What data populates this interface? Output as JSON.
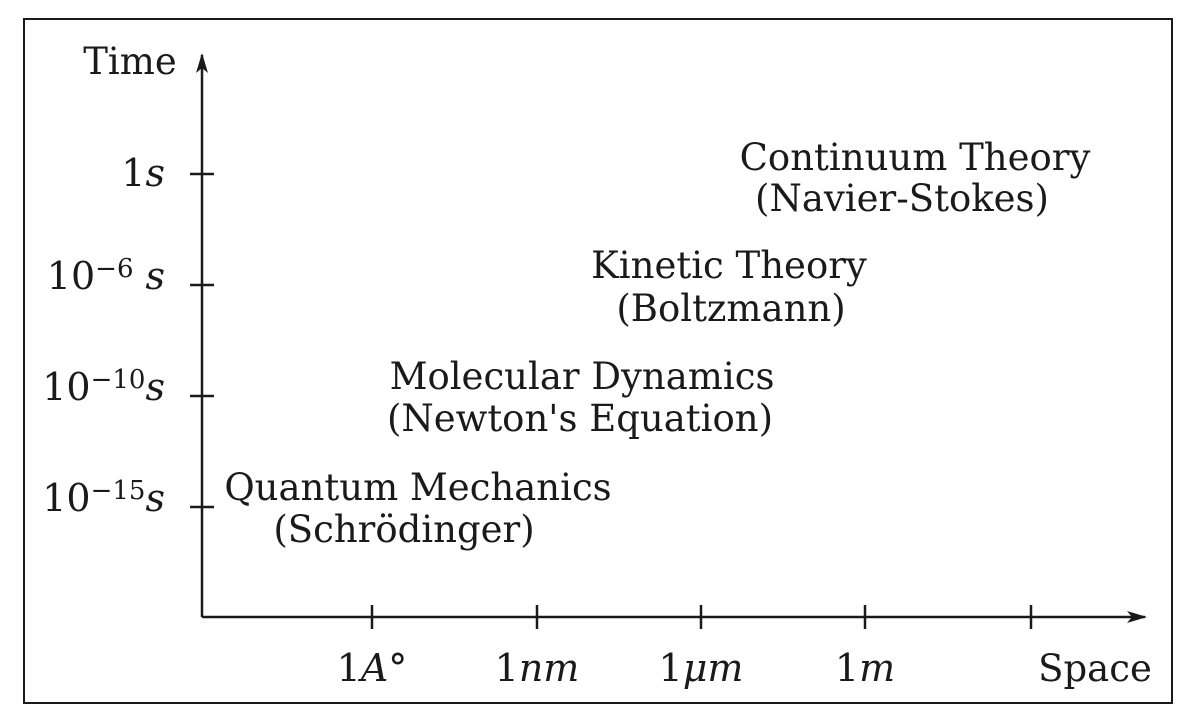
{
  "axes": {
    "y_title": "Time",
    "x_title": "Space"
  },
  "y_ticks": [
    {
      "base": "1",
      "exp": "",
      "unit": "s"
    },
    {
      "base": "10",
      "exp": "−6",
      "unit": "s"
    },
    {
      "base": "10",
      "exp": "−10",
      "unit": "s"
    },
    {
      "base": "10",
      "exp": "−15",
      "unit": "s"
    }
  ],
  "x_ticks": [
    {
      "num": "1",
      "unit": "A°"
    },
    {
      "num": "1",
      "unit": "nm"
    },
    {
      "num": "1",
      "unit": "μm"
    },
    {
      "num": "1",
      "unit": "m"
    }
  ],
  "regimes": [
    {
      "name": "Continuum Theory",
      "equation": "(Navier-Stokes)"
    },
    {
      "name": "Kinetic Theory",
      "equation": "(Boltzmann)"
    },
    {
      "name": "Molecular Dynamics",
      "equation": "(Newton's Equation)"
    },
    {
      "name": "Quantum Mechanics",
      "equation": "(Schrödinger)"
    }
  ]
}
